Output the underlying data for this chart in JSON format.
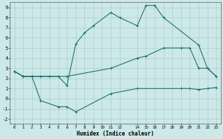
{
  "xlabel": "Humidex (Indice chaleur)",
  "xlim": [
    -0.5,
    23.5
  ],
  "ylim": [
    -2.5,
    9.5
  ],
  "xticks": [
    0,
    1,
    2,
    3,
    4,
    5,
    6,
    7,
    8,
    9,
    10,
    11,
    12,
    14,
    15,
    16,
    17,
    18,
    19,
    20,
    21,
    22,
    23
  ],
  "yticks": [
    -2,
    -1,
    0,
    1,
    2,
    3,
    4,
    5,
    6,
    7,
    8,
    9
  ],
  "background_color": "#cce8e8",
  "grid_color": "#aacece",
  "line_color": "#1a7070",
  "line1_x": [
    0,
    1,
    2,
    3,
    4,
    5,
    6,
    7,
    8,
    9,
    11,
    12,
    14,
    15,
    16,
    17,
    21,
    22,
    23
  ],
  "line1_y": [
    2.7,
    2.2,
    2.2,
    2.2,
    2.2,
    2.2,
    1.3,
    5.4,
    6.5,
    7.2,
    8.5,
    8.0,
    7.2,
    9.2,
    9.2,
    8.0,
    5.3,
    3.0,
    2.2
  ],
  "line2_x": [
    0,
    1,
    2,
    6,
    11,
    14,
    15,
    17,
    19,
    20,
    21,
    22,
    23
  ],
  "line2_y": [
    2.7,
    2.2,
    2.2,
    2.2,
    3.0,
    4.0,
    4.2,
    5.0,
    5.0,
    5.0,
    3.0,
    3.0,
    2.2
  ],
  "line3_x": [
    0,
    1,
    2,
    3,
    5,
    6,
    7,
    11,
    14,
    19,
    20,
    21,
    22,
    23
  ],
  "line3_y": [
    2.7,
    2.2,
    2.2,
    -0.2,
    -0.8,
    -0.8,
    -1.3,
    0.5,
    1.0,
    1.0,
    1.0,
    0.9,
    1.0,
    1.1
  ]
}
